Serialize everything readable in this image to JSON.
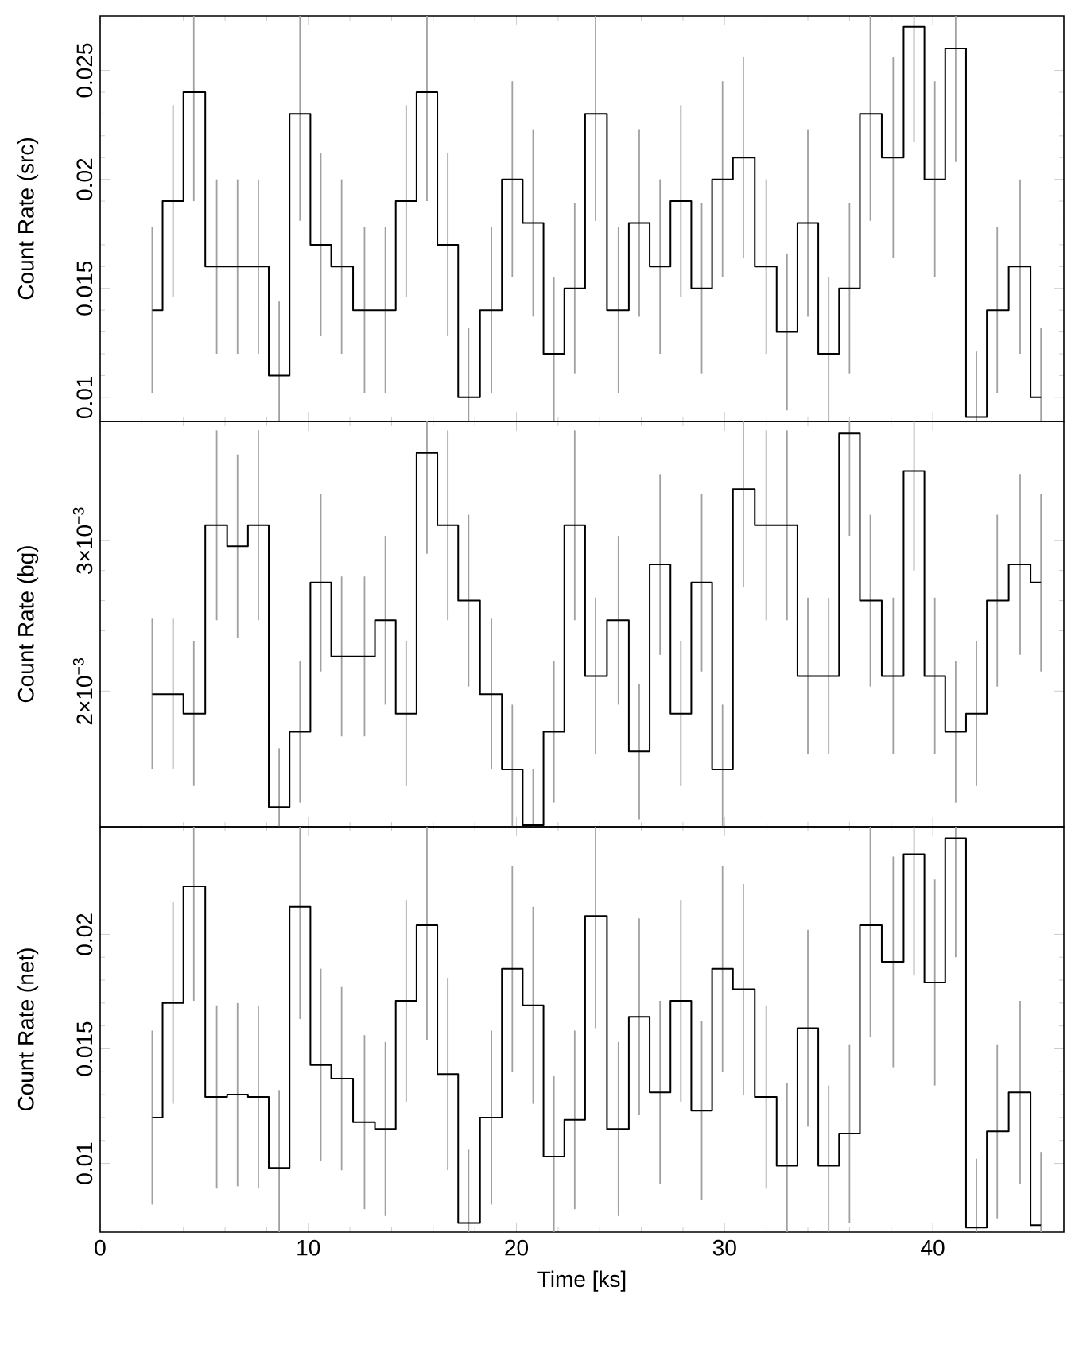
{
  "chart_data": [
    {
      "type": "step",
      "ylabel": "Count Rate (src)",
      "color": "#000000",
      "xlim": [
        0,
        46.3
      ],
      "xticks": [
        0,
        10,
        20,
        30,
        40
      ],
      "ylim": [
        0.0089,
        0.0275
      ],
      "yticks": [
        0.01,
        0.015,
        0.02,
        0.025
      ],
      "tick_labels": "y",
      "x": [
        2.5,
        3.5,
        4.5,
        5.6,
        6.6,
        7.6,
        8.6,
        9.6,
        10.6,
        11.6,
        12.7,
        13.7,
        14.7,
        15.7,
        16.7,
        17.7,
        18.8,
        19.8,
        20.8,
        21.8,
        22.8,
        23.8,
        24.9,
        25.9,
        26.9,
        27.9,
        28.9,
        29.9,
        30.9,
        32.0,
        33.0,
        34.0,
        35.0,
        36.0,
        37.0,
        38.1,
        39.1,
        40.1,
        41.1,
        42.1,
        43.1,
        44.2,
        45.2
      ],
      "values": [
        0.014,
        0.019,
        0.024,
        0.016,
        0.016,
        0.016,
        0.011,
        0.023,
        0.017,
        0.016,
        0.014,
        0.014,
        0.019,
        0.024,
        0.017,
        0.01,
        0.014,
        0.02,
        0.018,
        0.012,
        0.015,
        0.023,
        0.014,
        0.018,
        0.016,
        0.019,
        0.015,
        0.02,
        0.021,
        0.016,
        0.013,
        0.018,
        0.012,
        0.015,
        0.023,
        0.021,
        0.027,
        0.02,
        0.026,
        0.0091,
        0.014,
        0.016,
        0.01
      ],
      "errors": [
        0.0038,
        0.0044,
        0.005,
        0.004,
        0.004,
        0.004,
        0.0034,
        0.0049,
        0.0042,
        0.004,
        0.0038,
        0.0038,
        0.0044,
        0.005,
        0.0042,
        0.0032,
        0.0038,
        0.0045,
        0.0043,
        0.0035,
        0.0039,
        0.0049,
        0.0038,
        0.0043,
        0.004,
        0.0044,
        0.0039,
        0.0045,
        0.0046,
        0.004,
        0.0036,
        0.0043,
        0.0035,
        0.0039,
        0.0049,
        0.0046,
        0.0053,
        0.0045,
        0.0052,
        0.003,
        0.0038,
        0.004,
        0.0032
      ]
    },
    {
      "type": "step",
      "ylabel": "Count Rate (bg)",
      "color": "#000000",
      "xlim": [
        0,
        46.3
      ],
      "xticks": [
        0,
        10,
        20,
        30,
        40
      ],
      "ylim": [
        0.0011,
        0.00379
      ],
      "yticks": [
        {
          "value": 0.002,
          "label": "2×10$^{−3}$"
        },
        {
          "value": 0.003,
          "label": "3×10$^{−3}$"
        }
      ],
      "tick_labels": "y",
      "x": [
        2.5,
        3.5,
        4.5,
        5.6,
        6.6,
        7.6,
        8.6,
        9.6,
        10.6,
        11.6,
        12.7,
        13.7,
        14.7,
        15.7,
        16.7,
        17.7,
        18.8,
        19.8,
        20.8,
        21.8,
        22.8,
        23.8,
        24.9,
        25.9,
        26.9,
        27.9,
        28.9,
        29.9,
        30.9,
        32.0,
        33.0,
        34.0,
        35.0,
        36.0,
        37.0,
        38.1,
        39.1,
        40.1,
        41.1,
        42.1,
        43.1,
        44.2,
        45.2
      ],
      "values": [
        0.00198,
        0.00198,
        0.00185,
        0.0031,
        0.00296,
        0.0031,
        0.00123,
        0.00173,
        0.00272,
        0.00223,
        0.00223,
        0.00247,
        0.00185,
        0.00358,
        0.0031,
        0.0026,
        0.00198,
        0.00148,
        0.00111,
        0.00173,
        0.0031,
        0.0021,
        0.00247,
        0.0016,
        0.00284,
        0.00185,
        0.00272,
        0.00148,
        0.00334,
        0.0031,
        0.0031,
        0.0021,
        0.0021,
        0.00371,
        0.0026,
        0.0021,
        0.00346,
        0.0021,
        0.00173,
        0.00185,
        0.0026,
        0.00284,
        0.00272
      ],
      "errors": [
        0.0005,
        0.0005,
        0.00048,
        0.00063,
        0.00061,
        0.00063,
        0.00039,
        0.00047,
        0.00059,
        0.00053,
        0.00053,
        0.00056,
        0.00048,
        0.00067,
        0.00063,
        0.00057,
        0.0005,
        0.00043,
        0.00037,
        0.00047,
        0.00063,
        0.00052,
        0.00056,
        0.00045,
        0.0006,
        0.00048,
        0.00059,
        0.00043,
        0.00065,
        0.00063,
        0.00063,
        0.00052,
        0.00052,
        0.00068,
        0.00057,
        0.00052,
        0.00066,
        0.00052,
        0.00047,
        0.00048,
        0.00057,
        0.0006,
        0.00059
      ]
    },
    {
      "type": "step",
      "ylabel": "Count Rate (net)",
      "xlabel": "Time [ks]",
      "color": "#000000",
      "xlim": [
        0,
        46.3
      ],
      "xticks": [
        0,
        10,
        20,
        30,
        40
      ],
      "ylim": [
        0.007,
        0.0247
      ],
      "yticks": [
        0.01,
        0.015,
        0.02
      ],
      "x": [
        2.5,
        3.5,
        4.5,
        5.6,
        6.6,
        7.6,
        8.6,
        9.6,
        10.6,
        11.6,
        12.7,
        13.7,
        14.7,
        15.7,
        16.7,
        17.7,
        18.8,
        19.8,
        20.8,
        21.8,
        22.8,
        23.8,
        24.9,
        25.9,
        26.9,
        27.9,
        28.9,
        29.9,
        30.9,
        32.0,
        33.0,
        34.0,
        35.0,
        36.0,
        37.0,
        38.1,
        39.1,
        40.1,
        41.1,
        42.1,
        43.1,
        44.2,
        45.2
      ],
      "values": [
        0.012,
        0.017,
        0.0221,
        0.0129,
        0.013,
        0.0129,
        0.0098,
        0.0212,
        0.0143,
        0.0137,
        0.0118,
        0.0115,
        0.0171,
        0.0204,
        0.0139,
        0.0074,
        0.012,
        0.0185,
        0.0169,
        0.0103,
        0.0119,
        0.0208,
        0.0115,
        0.0164,
        0.0131,
        0.0171,
        0.0123,
        0.0185,
        0.0176,
        0.0129,
        0.0099,
        0.0159,
        0.0099,
        0.0113,
        0.0204,
        0.0188,
        0.0235,
        0.0179,
        0.0242,
        0.0072,
        0.0114,
        0.0131,
        0.0073
      ],
      "errors": [
        0.0038,
        0.0044,
        0.005,
        0.004,
        0.004,
        0.004,
        0.0034,
        0.0049,
        0.0042,
        0.004,
        0.0038,
        0.0038,
        0.0044,
        0.005,
        0.0042,
        0.0032,
        0.0038,
        0.0045,
        0.0043,
        0.0035,
        0.0039,
        0.0049,
        0.0038,
        0.0043,
        0.004,
        0.0044,
        0.0039,
        0.0045,
        0.0046,
        0.004,
        0.0036,
        0.0043,
        0.0035,
        0.0039,
        0.0049,
        0.0046,
        0.0053,
        0.0045,
        0.0052,
        0.003,
        0.0038,
        0.004,
        0.0032
      ]
    }
  ]
}
